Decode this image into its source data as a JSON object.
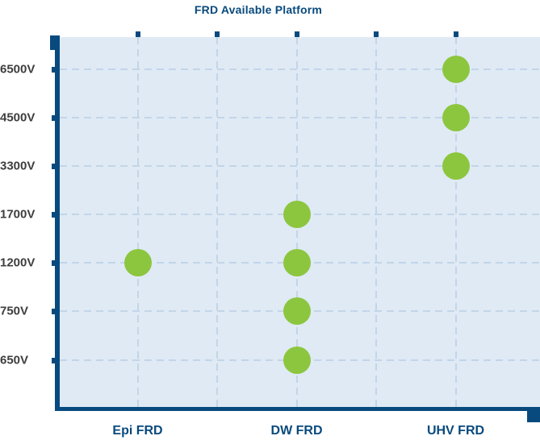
{
  "chart_data": {
    "type": "scatter",
    "title": "FRD Available Platform",
    "categories": [
      "Epi FRD",
      "DW FRD",
      "UHV FRD"
    ],
    "voltage_levels_top_to_bottom": [
      "6500V",
      "4500V",
      "3300V",
      "1700V",
      "1200V",
      "750V",
      "650V"
    ],
    "points": [
      {
        "platform": "Epi FRD",
        "voltage": "1200V"
      },
      {
        "platform": "DW FRD",
        "voltage": "1700V"
      },
      {
        "platform": "DW FRD",
        "voltage": "1200V"
      },
      {
        "platform": "DW FRD",
        "voltage": "750V"
      },
      {
        "platform": "DW FRD",
        "voltage": "650V"
      },
      {
        "platform": "UHV FRD",
        "voltage": "6500V"
      },
      {
        "platform": "UHV FRD",
        "voltage": "4500V"
      },
      {
        "platform": "UHV FRD",
        "voltage": "3300V"
      }
    ],
    "xlabel": "",
    "ylabel": "",
    "legend": "none",
    "grid": "dashed, horizontal at each voltage level, vertical at category columns and midpoints",
    "colors": {
      "dot": "#8CC63F",
      "axis_navy": "#084A7D",
      "label_gray": "#3E3E3E",
      "plot_background": "#DFEAF4",
      "gridline": "#C3D5E8"
    }
  }
}
